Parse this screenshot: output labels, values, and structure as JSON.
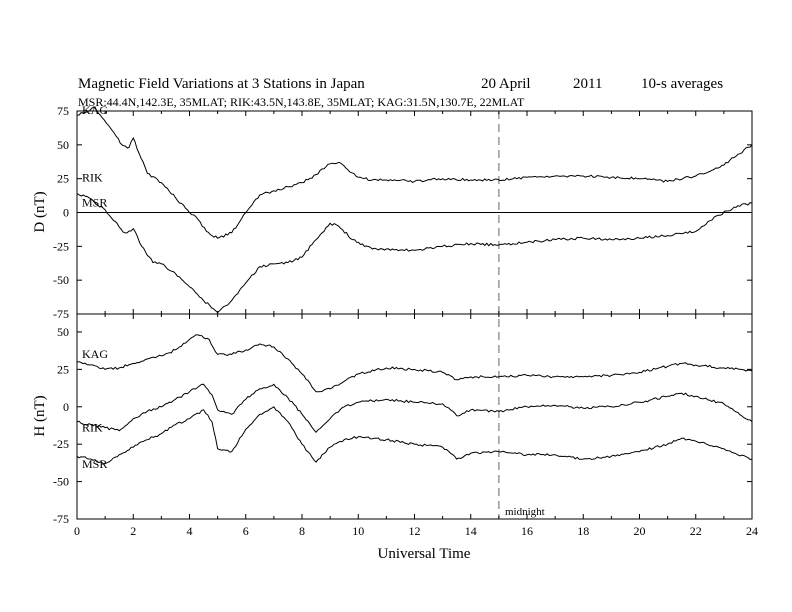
{
  "chart_data": {
    "type": "line",
    "title": {
      "main": "Magnetic Field Variations at 3 Stations in Japan",
      "date": "20 April",
      "year": "2011",
      "note": "10-s averages"
    },
    "subtitle": "MSR:44.4N,142.3E, 35MLAT;  RIK:43.5N,143.8E, 35MLAT;  KAG:31.5N,130.7E, 22MLAT",
    "xlabel": "Universal Time",
    "xlim": [
      0,
      24
    ],
    "x_ticks": [
      "0",
      "2",
      "4",
      "6",
      "8",
      "10",
      "12",
      "14",
      "16",
      "18",
      "20",
      "22",
      "24"
    ],
    "midnight": {
      "x": 15,
      "label": "midnight"
    },
    "panels": [
      {
        "id": "D",
        "ylabel": "D (nT)",
        "ylim": [
          -75,
          75
        ],
        "y_ticks": [
          "75",
          "50",
          "25",
          "0",
          "-25",
          "-50",
          "-75"
        ],
        "zero_line": true,
        "series": [
          {
            "name": "KAG",
            "x": [
              0,
              0.3,
              0.6,
              0.9,
              1.2,
              1.6,
              1.85,
              2.0,
              2.2,
              2.5,
              3.0,
              3.5,
              4.0,
              4.3,
              4.6,
              5.0,
              5.5,
              6.0,
              6.5,
              7.0,
              7.5,
              8.0,
              8.5,
              9.0,
              9.3,
              9.7,
              10.0,
              10.5,
              11,
              12,
              13,
              14,
              15,
              16,
              17,
              18,
              19,
              20,
              21,
              22,
              23,
              23.5,
              24
            ],
            "values": [
              72,
              74,
              78,
              70,
              62,
              50,
              48,
              55,
              44,
              29,
              22,
              11,
              0,
              -5,
              -14,
              -19,
              -15,
              0,
              13,
              16,
              19,
              22,
              28,
              36,
              37,
              30,
              26,
              24,
              24,
              23,
              25,
              24,
              24,
              26,
              27,
              27,
              26,
              25,
              23,
              27,
              35,
              43,
              50
            ]
          },
          {
            "name": "RIK",
            "x": [
              0,
              0.3,
              0.6,
              1.0,
              1.3,
              1.7,
              2.0,
              2.3,
              2.7,
              3.0,
              3.5,
              4.0,
              4.5,
              5.0,
              5.5,
              6.0,
              6.5,
              7.0,
              7.5,
              8.0,
              8.5,
              9.0,
              9.3,
              9.8,
              10.5,
              11,
              12,
              13,
              14,
              15,
              16,
              17,
              18,
              19,
              20,
              21,
              22,
              22.8,
              23.5,
              24
            ],
            "values": [
              14,
              12,
              8,
              2,
              -6,
              -15,
              -12,
              -25,
              -37,
              -38,
              -45,
              -55,
              -65,
              -74,
              -65,
              -52,
              -40,
              -38,
              -37,
              -33,
              -20,
              -8,
              -10,
              -20,
              -27,
              -27,
              -28,
              -25,
              -23,
              -24,
              -22,
              -20,
              -19,
              -20,
              -19,
              -17,
              -14,
              -2,
              5,
              7
            ]
          }
        ]
      },
      {
        "id": "H",
        "ylabel": "H (nT)",
        "ylim": [
          -75,
          62
        ],
        "y_ticks": [
          "50",
          "25",
          "0",
          "-25",
          "-50",
          "-75"
        ],
        "zero_line": false,
        "series": [
          {
            "name": "KAG",
            "x": [
              0,
              0.5,
              1.0,
              1.5,
              2.0,
              2.5,
              3.0,
              3.5,
              4.0,
              4.3,
              4.7,
              5.0,
              5.5,
              6.0,
              6.5,
              7.0,
              7.5,
              8.0,
              8.5,
              9.0,
              9.5,
              10,
              11,
              12,
              13,
              13.5,
              14,
              15,
              16,
              17,
              18,
              19,
              20,
              21,
              21.5,
              22,
              23,
              24
            ],
            "values": [
              30,
              28,
              25,
              26,
              29,
              32,
              34,
              38,
              45,
              48,
              45,
              35,
              35,
              38,
              42,
              40,
              32,
              22,
              10,
              12,
              17,
              22,
              26,
              25,
              23,
              18,
              20,
              20,
              21,
              20,
              20,
              21,
              23,
              27,
              29,
              28,
              26,
              24
            ]
          },
          {
            "name": "RIK",
            "x": [
              0,
              0.5,
              1.0,
              1.5,
              2.0,
              2.5,
              3.0,
              3.5,
              4.0,
              4.5,
              4.8,
              5.0,
              5.5,
              6.0,
              6.5,
              7.0,
              7.5,
              8.0,
              8.5,
              9.0,
              9.5,
              10,
              11,
              12,
              13,
              13.5,
              14,
              15,
              16,
              17,
              18,
              19,
              20,
              21,
              21.5,
              22,
              23,
              24
            ],
            "values": [
              -10,
              -12,
              -14,
              -16,
              -8,
              -3,
              0,
              5,
              10,
              15,
              8,
              -2,
              -5,
              5,
              12,
              15,
              6,
              -5,
              -17,
              -8,
              0,
              3,
              5,
              3,
              2,
              -6,
              -2,
              -3,
              0,
              1,
              -1,
              0,
              3,
              7,
              9,
              7,
              2,
              -10
            ]
          },
          {
            "name": "MSR",
            "x": [
              0,
              0.5,
              1.0,
              1.5,
              2.0,
              2.5,
              3.0,
              3.5,
              4.0,
              4.5,
              4.8,
              5.0,
              5.5,
              6.0,
              6.5,
              7.0,
              7.5,
              8.0,
              8.5,
              9.0,
              9.5,
              10,
              11,
              12,
              13,
              13.5,
              14,
              15,
              16,
              17,
              18,
              19,
              20,
              21,
              21.5,
              22,
              23,
              24
            ],
            "values": [
              -33,
              -35,
              -38,
              -32,
              -27,
              -22,
              -18,
              -12,
              -8,
              -2,
              -10,
              -28,
              -30,
              -15,
              -5,
              0,
              -10,
              -25,
              -37,
              -27,
              -22,
              -20,
              -22,
              -25,
              -27,
              -35,
              -31,
              -30,
              -32,
              -32,
              -35,
              -33,
              -30,
              -25,
              -21,
              -23,
              -28,
              -35
            ]
          }
        ]
      }
    ]
  }
}
